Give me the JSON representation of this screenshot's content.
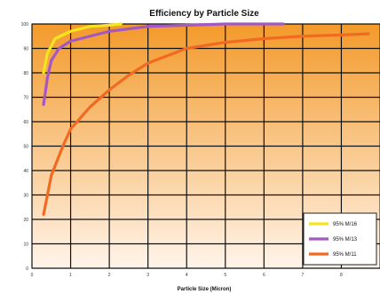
{
  "chart_data": {
    "type": "line",
    "title": "Efficiency by Particle Size",
    "xlabel": "Particle Size (Micron)",
    "ylabel": "",
    "xlim": [
      0,
      9
    ],
    "ylim": [
      0,
      100
    ],
    "x_ticks": [
      0,
      1,
      2,
      3,
      4,
      5,
      6,
      7,
      8
    ],
    "y_ticks": [
      0,
      10,
      20,
      30,
      40,
      50,
      60,
      70,
      80,
      90,
      100
    ],
    "grid": true,
    "legend_position": "bottom-right",
    "background_gradient": [
      "#f39a2a",
      "#fff4ea"
    ],
    "series": [
      {
        "name": "95% M/16",
        "color": "#f5e51f",
        "x": [
          0.3,
          0.4,
          0.6,
          1.0,
          1.5,
          2.0,
          2.3
        ],
        "y": [
          80,
          88,
          94,
          97,
          99,
          99.5,
          100
        ]
      },
      {
        "name": "95% M/13",
        "color": "#a358c4",
        "x": [
          0.3,
          0.4,
          0.5,
          0.7,
          1.0,
          1.5,
          2.0,
          3.0,
          4.0,
          5.0,
          6.5
        ],
        "y": [
          67,
          78,
          85,
          90,
          93,
          95,
          97,
          99,
          99.5,
          100,
          100
        ]
      },
      {
        "name": "95% M/11",
        "color": "#f26a22",
        "x": [
          0.3,
          0.5,
          0.8,
          1.0,
          1.5,
          2.0,
          2.5,
          3.0,
          3.5,
          4.0,
          5.0,
          6.0,
          7.0,
          8.0,
          8.7
        ],
        "y": [
          22,
          38,
          50,
          57,
          66,
          73,
          79,
          84,
          87,
          90,
          92.5,
          94,
          95,
          95.5,
          96
        ]
      }
    ]
  }
}
